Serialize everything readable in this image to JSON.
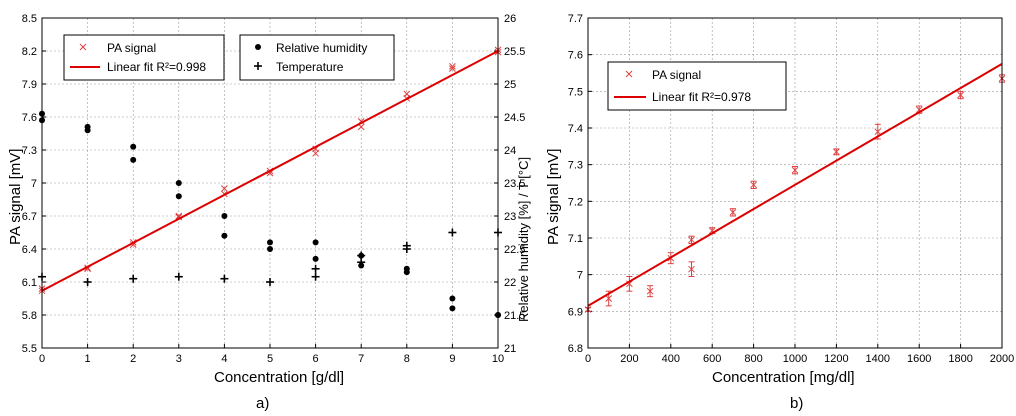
{
  "chart_data": [
    {
      "panel_label": "a)",
      "type": "scatter",
      "xlabel": "Concentration [g/dl]",
      "ylabel": "PA signal [mV]",
      "y2label": "Relative humidity [%] / T [°C]",
      "xlim": [
        0,
        10
      ],
      "ylim": [
        5.5,
        8.5
      ],
      "y2lim": [
        21,
        26
      ],
      "xticks": [
        "0",
        "1",
        "2",
        "3",
        "4",
        "5",
        "6",
        "7",
        "8",
        "9",
        "10"
      ],
      "yticks": [
        "5.5",
        "5.8",
        "6.1",
        "6.4",
        "6.7",
        "7",
        "7.3",
        "7.6",
        "7.9",
        "8.2",
        "8.5"
      ],
      "y2ticks": [
        "21",
        "21.5",
        "22",
        "22.5",
        "23",
        "23.5",
        "24",
        "24.5",
        "25",
        "25.5",
        "26"
      ],
      "grid": true,
      "legends": [
        {
          "placement": "top-left",
          "entries": [
            {
              "label": "PA signal",
              "marker": "x",
              "color": "#e04040"
            },
            {
              "label": "Linear fit R²=0.998",
              "marker": "line",
              "color": "#dd0000"
            }
          ]
        },
        {
          "placement": "top-center",
          "entries": [
            {
              "label": "Relative humidity",
              "marker": "dot",
              "color": "#000000"
            },
            {
              "label": "Temperature",
              "marker": "plus",
              "color": "#000000"
            }
          ]
        }
      ],
      "series": [
        {
          "name": "PA signal",
          "axis": "left",
          "marker": "x",
          "color": "#e04040",
          "x": [
            0,
            0,
            1,
            1,
            2,
            2,
            3,
            3,
            4,
            4,
            5,
            5,
            6,
            6,
            7,
            7,
            8,
            8,
            9,
            9,
            10,
            10
          ],
          "y": [
            6.02,
            6.04,
            6.22,
            6.23,
            6.44,
            6.46,
            6.69,
            6.7,
            6.9,
            6.95,
            7.09,
            7.11,
            7.27,
            7.31,
            7.51,
            7.56,
            7.77,
            7.81,
            8.04,
            8.06,
            8.19,
            8.21
          ]
        },
        {
          "name": "Linear fit R²=0.998",
          "axis": "left",
          "marker": "line",
          "color": "#dd0000",
          "x": [
            0,
            10
          ],
          "y": [
            6.02,
            8.2
          ]
        },
        {
          "name": "Relative humidity",
          "axis": "right",
          "marker": "dot",
          "color": "#000000",
          "x": [
            0,
            0,
            1,
            1,
            2,
            2,
            3,
            3,
            4,
            4,
            5,
            5,
            6,
            6,
            7,
            7,
            8,
            8,
            9,
            9,
            10,
            10
          ],
          "y": [
            24.55,
            24.45,
            24.35,
            24.3,
            24.05,
            23.85,
            23.5,
            23.3,
            23.0,
            22.7,
            22.6,
            22.5,
            22.6,
            22.35,
            22.4,
            22.25,
            22.2,
            22.15,
            21.75,
            21.6,
            21.5,
            21.5
          ]
        },
        {
          "name": "Temperature",
          "axis": "right",
          "marker": "plus",
          "color": "#000000",
          "x": [
            0,
            1,
            2,
            3,
            4,
            5,
            6,
            6,
            7,
            7,
            8,
            8,
            9,
            10
          ],
          "y": [
            22.08,
            22.0,
            22.05,
            22.08,
            22.05,
            22.0,
            22.08,
            22.2,
            22.4,
            22.3,
            22.55,
            22.5,
            22.75,
            22.75
          ]
        }
      ]
    },
    {
      "panel_label": "b)",
      "type": "scatter",
      "xlabel": "Concentration [mg/dl]",
      "ylabel": "PA signal [mV]",
      "xlim": [
        0,
        2000
      ],
      "ylim": [
        6.8,
        7.7
      ],
      "xticks": [
        "0",
        "200",
        "400",
        "600",
        "800",
        "1000",
        "1200",
        "1400",
        "1600",
        "1800",
        "2000"
      ],
      "yticks": [
        "6.8",
        "6.9",
        "7",
        "7.1",
        "7.2",
        "7.3",
        "7.4",
        "7.5",
        "7.6",
        "7.7"
      ],
      "grid": true,
      "legends": [
        {
          "placement": "top-left",
          "entries": [
            {
              "label": "PA signal",
              "marker": "x",
              "color": "#e04040"
            },
            {
              "label": "Linear fit R²=0.978",
              "marker": "line",
              "color": "#dd0000"
            }
          ]
        }
      ],
      "series": [
        {
          "name": "PA signal",
          "marker": "x-errorbar",
          "color": "#e04040",
          "x": [
            0,
            100,
            200,
            300,
            400,
            500,
            500,
            600,
            700,
            800,
            1000,
            1200,
            1400,
            1600,
            1800,
            2000
          ],
          "y": [
            6.905,
            6.935,
            6.975,
            6.955,
            7.045,
            7.095,
            7.015,
            7.12,
            7.17,
            7.245,
            7.285,
            7.335,
            7.39,
            7.45,
            7.49,
            7.535
          ],
          "err": [
            0.005,
            0.02,
            0.02,
            0.015,
            0.015,
            0.01,
            0.02,
            0.008,
            0.01,
            0.01,
            0.01,
            0.008,
            0.02,
            0.01,
            0.01,
            0.01
          ]
        },
        {
          "name": "Linear fit R²=0.978",
          "marker": "line",
          "color": "#dd0000",
          "x": [
            0,
            2000
          ],
          "y": [
            6.915,
            7.575
          ]
        }
      ]
    }
  ]
}
